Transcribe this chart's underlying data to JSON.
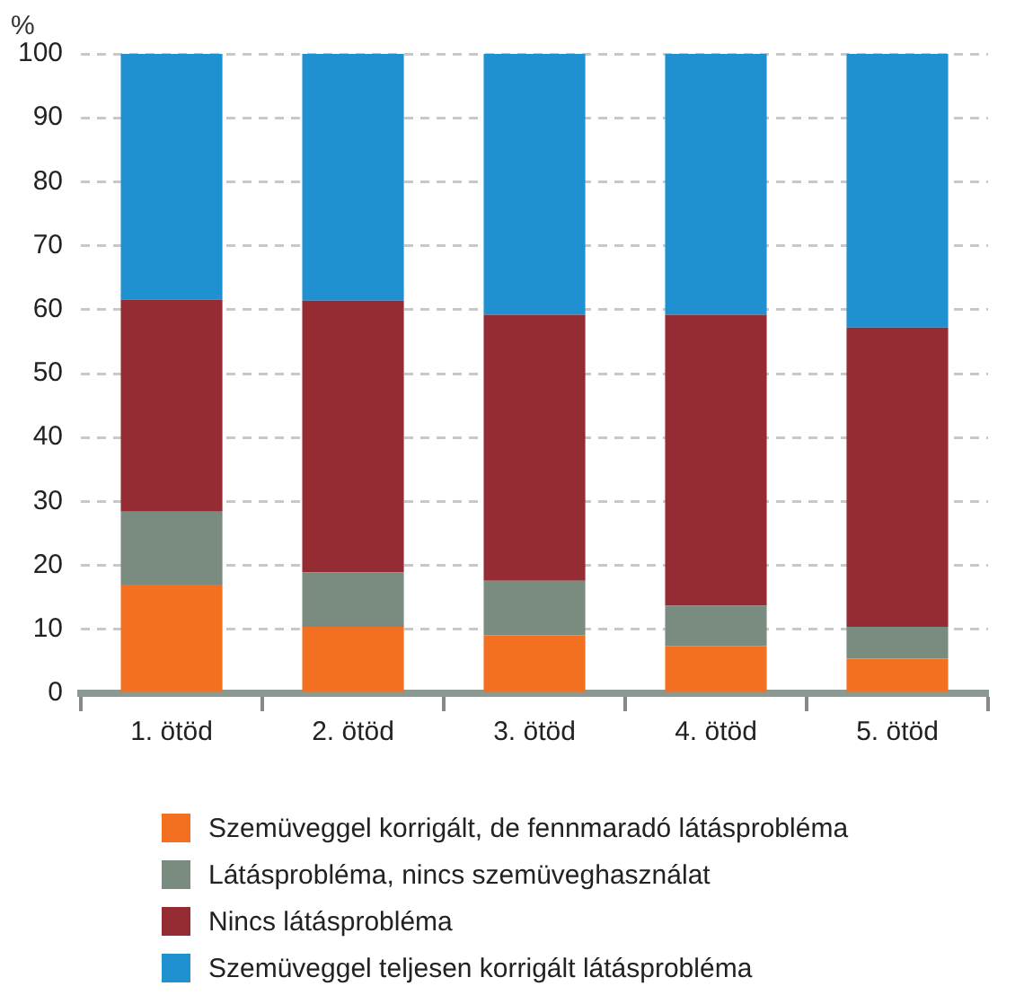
{
  "chart_data": {
    "type": "bar",
    "stacked": true,
    "ylabel": "%",
    "categories": [
      "1. ötöd",
      "2. ötöd",
      "3. ötöd",
      "4. ötöd",
      "5. ötöd"
    ],
    "series": [
      {
        "name": "Szemüveggel korrigált, de fennmaradó látásprobléma",
        "color": "#f37021",
        "values": [
          17.0,
          10.4,
          9.1,
          7.4,
          5.4
        ]
      },
      {
        "name": "Látásprobléma, nincs szemüveghasználat",
        "color": "#7a8b80",
        "values": [
          11.4,
          8.5,
          8.5,
          6.3,
          5.0
        ]
      },
      {
        "name": "Nincs látásprobléma",
        "color": "#962c33",
        "values": [
          33.2,
          42.5,
          41.6,
          45.5,
          46.8
        ]
      },
      {
        "name": "Szemüveggel teljesen korrigált látásprobléma",
        "color": "#1f90d0",
        "values": [
          38.4,
          38.6,
          40.8,
          40.8,
          42.8
        ]
      }
    ],
    "ylim": [
      0,
      100
    ],
    "yticks": [
      0,
      10,
      20,
      30,
      40,
      50,
      60,
      70,
      80,
      90,
      100
    ],
    "grid": "y",
    "legend": "bottom"
  }
}
